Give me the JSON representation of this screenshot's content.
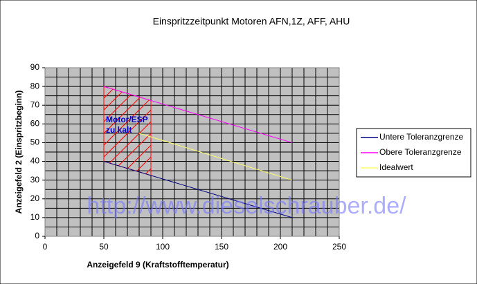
{
  "chart_data": {
    "type": "line",
    "title": "Einspritzzeitpunkt Motoren AFN,1Z, AFF, AHU",
    "x_label": "Anzeigefeld 9 (Kraftstofftemperatur)",
    "y_label": "Anzeigefeld 2 (Einspritzbeginn)",
    "xlim": [
      0,
      250
    ],
    "xticks": [
      0,
      50,
      100,
      150,
      200,
      250
    ],
    "xgrid": [
      0,
      10,
      20,
      30,
      40,
      50,
      60,
      70,
      80,
      90,
      100,
      110,
      120,
      130,
      140,
      150,
      160,
      170,
      180,
      190,
      200,
      210,
      220,
      230,
      240,
      250
    ],
    "ylim": [
      0,
      90
    ],
    "yticks": [
      0,
      10,
      20,
      30,
      40,
      50,
      60,
      70,
      80,
      90
    ],
    "ygrid": [
      0,
      5,
      10,
      15,
      20,
      25,
      30,
      35,
      40,
      45,
      50,
      55,
      60,
      65,
      70,
      75,
      80,
      85,
      90
    ],
    "grid": true,
    "legend": "right",
    "series": [
      {
        "name": "Untere Toleranzgrenze",
        "color": "#000080",
        "x": [
          50,
          210
        ],
        "values": [
          40,
          10
        ]
      },
      {
        "name": "Obere Toleranzgrenze",
        "color": "#ff00ff",
        "x": [
          50,
          210
        ],
        "values": [
          80,
          50
        ]
      },
      {
        "name": "Idealwert",
        "color": "#ffff66",
        "x": [
          80,
          210
        ],
        "values": [
          55,
          30
        ]
      }
    ],
    "region": {
      "x": [
        50,
        90,
        90,
        50
      ],
      "y": [
        80,
        72.5,
        32.5,
        40
      ],
      "color": "#ff0000"
    },
    "annotation": [
      "Motor/ESP",
      "zu kalt"
    ],
    "watermark": "http://www.dieselschrauber.de/"
  }
}
